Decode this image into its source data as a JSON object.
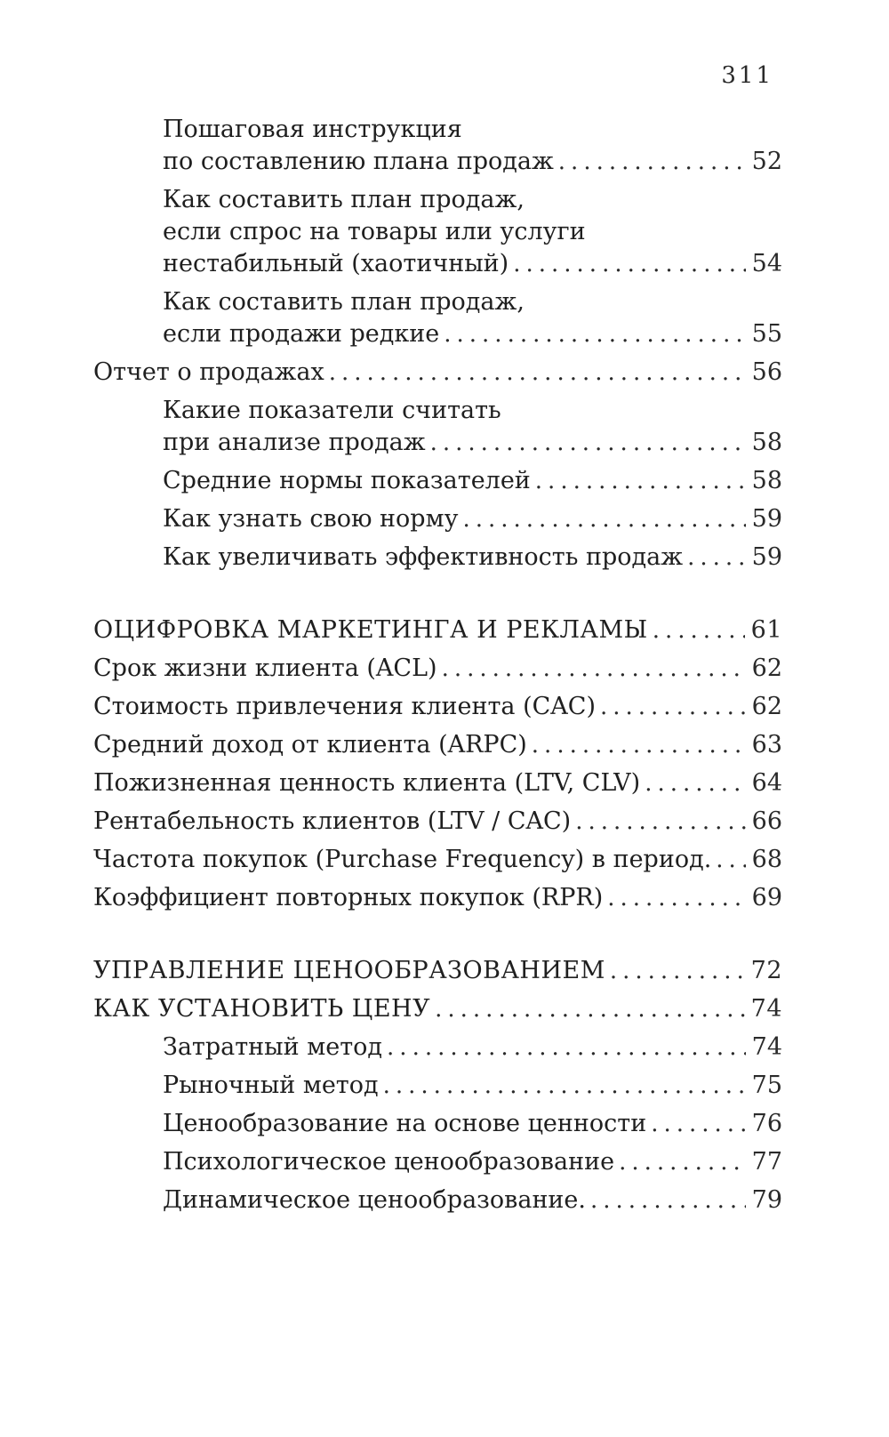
{
  "page": {
    "number": "311"
  },
  "colors": {
    "background": "#ffffff",
    "text": "#1f1f1f"
  },
  "toc": {
    "entries": [
      {
        "level": "sub",
        "lines": [
          "Пошаговая инструкция",
          "по составлению плана продаж"
        ],
        "page": "52"
      },
      {
        "level": "sub",
        "lines": [
          "Как составить план продаж,",
          "если спрос на товары или услуги",
          "нестабильный (хаотичный)"
        ],
        "page": "54"
      },
      {
        "level": "sub",
        "lines": [
          "Как составить план продаж,",
          "если продажи редкие"
        ],
        "page": "55"
      },
      {
        "level": "top",
        "lines": [
          "Отчет о продажах"
        ],
        "page": "56"
      },
      {
        "level": "sub",
        "lines": [
          "Какие показатели считать",
          "при анализе продаж"
        ],
        "page": "58"
      },
      {
        "level": "sub",
        "lines": [
          "Средние нормы показателей"
        ],
        "page": "58"
      },
      {
        "level": "sub",
        "lines": [
          "Как узнать свою норму"
        ],
        "page": "59"
      },
      {
        "level": "sub",
        "lines": [
          "Как увеличивать эффективность продаж"
        ],
        "page": "59"
      },
      {
        "level": "section",
        "gap_before": true,
        "lines": [
          "ОЦИФРОВКА МАРКЕТИНГА И РЕКЛАМЫ"
        ],
        "page": "61"
      },
      {
        "level": "top",
        "lines": [
          "Срок жизни клиента (ACL)"
        ],
        "page": "62"
      },
      {
        "level": "top",
        "lines": [
          "Стоимость привлечения клиента (CAC)"
        ],
        "page": "62"
      },
      {
        "level": "top",
        "lines": [
          "Средний доход от клиента (ARPC)"
        ],
        "page": "63"
      },
      {
        "level": "top",
        "lines": [
          "Пожизненная ценность клиента (LTV, CLV)"
        ],
        "page": "64"
      },
      {
        "level": "top",
        "lines": [
          "Рентабельность клиентов (LTV / CAC)"
        ],
        "page": "66"
      },
      {
        "level": "top",
        "lines": [
          "Частота покупок (Purchase Frequency) в период."
        ],
        "page": "68"
      },
      {
        "level": "top",
        "lines": [
          "Коэффициент повторных покупок (RPR)"
        ],
        "page": "69"
      },
      {
        "level": "section",
        "gap_before": true,
        "lines": [
          "УПРАВЛЕНИЕ ЦЕНООБРАЗОВАНИЕМ"
        ],
        "page": "72"
      },
      {
        "level": "section",
        "lines": [
          "КАК УСТАНОВИТЬ ЦЕНУ"
        ],
        "page": "74"
      },
      {
        "level": "sub",
        "lines": [
          "Затратный метод"
        ],
        "page": "74"
      },
      {
        "level": "sub",
        "lines": [
          "Рыночный метод"
        ],
        "page": "75"
      },
      {
        "level": "sub",
        "lines": [
          "Ценообразование на основе ценности"
        ],
        "page": "76"
      },
      {
        "level": "sub",
        "lines": [
          "Психологическое ценообразование"
        ],
        "page": "77"
      },
      {
        "level": "sub",
        "lines": [
          "Динамическое ценообразование."
        ],
        "page": "79"
      }
    ]
  }
}
